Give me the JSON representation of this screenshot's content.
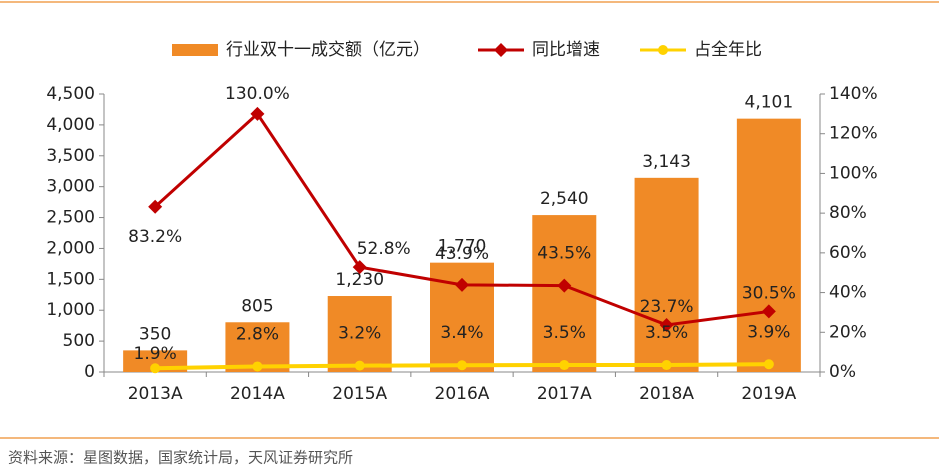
{
  "chart_data": {
    "type": "bar",
    "categories": [
      "2013A",
      "2014A",
      "2015A",
      "2016A",
      "2017A",
      "2018A",
      "2019A"
    ],
    "series": [
      {
        "name": "行业双十一成交额（亿元）",
        "type": "bar",
        "color": "#f08a26",
        "axis": "y",
        "values": [
          350,
          805,
          1230,
          1770,
          2540,
          3143,
          4101
        ],
        "value_labels": [
          "350",
          "805",
          "1,230",
          "1,770",
          "2,540",
          "3,143",
          "4,101"
        ]
      },
      {
        "name": "同比增速",
        "type": "line",
        "color": "#c00000",
        "axis": "y2",
        "values": [
          83.2,
          130.0,
          52.8,
          43.9,
          43.5,
          23.7,
          30.5
        ],
        "value_labels": [
          "83.2%",
          "130.0%",
          "52.8%",
          "43.9%",
          "43.5%",
          "23.7%",
          "30.5%"
        ]
      },
      {
        "name": "占全年比",
        "type": "line",
        "color": "#ffd200",
        "axis": "y2",
        "values": [
          1.9,
          2.8,
          3.2,
          3.4,
          3.5,
          3.5,
          3.9
        ],
        "value_labels": [
          "1.9%",
          "2.8%",
          "3.2%",
          "3.4%",
          "3.5%",
          "3.5%",
          "3.9%"
        ]
      }
    ],
    "ylim": [
      0,
      4500
    ],
    "yticks": [
      0,
      500,
      {
        "value": 1000,
        "label": "1,000"
      },
      {
        "value": 1500,
        "label": "1,500"
      },
      {
        "value": 2000,
        "label": "2,000"
      },
      {
        "value": 2500,
        "label": "2,500"
      },
      {
        "value": 3000,
        "label": "3,000"
      },
      {
        "value": 3500,
        "label": "3,500"
      },
      {
        "value": 4000,
        "label": "4,000"
      },
      {
        "value": 4500,
        "label": "4,500"
      }
    ],
    "y2lim": [
      0,
      140
    ],
    "y2ticks": [
      {
        "value": 0,
        "label": "0%"
      },
      {
        "value": 20,
        "label": "20%"
      },
      {
        "value": 40,
        "label": "40%"
      },
      {
        "value": 60,
        "label": "60%"
      },
      {
        "value": 80,
        "label": "80%"
      },
      {
        "value": 100,
        "label": "100%"
      },
      {
        "value": 120,
        "label": "120%"
      },
      {
        "value": 140,
        "label": "140%"
      }
    ],
    "legend": "top",
    "source": "资料来源：星图数据，国家统计局，天风证券研究所"
  }
}
